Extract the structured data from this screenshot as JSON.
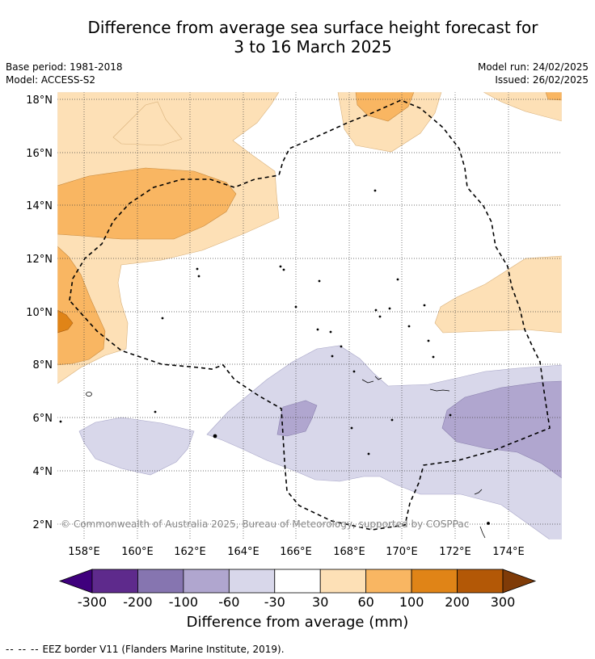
{
  "title_line1": "Difference from average sea surface height forecast for",
  "title_line2": "3 to 16 March 2025",
  "base_period": "Base period: 1981-2018",
  "model": "Model: ACCESS-S2",
  "model_run": "Model run: 24/02/2025",
  "issued": "Issued: 26/02/2025",
  "copyright": "© Commonwealth of Australia 2025, Bureau of Meteorology, supported by COSPPac",
  "lat_labels": [
    "18°N",
    "16°N",
    "14°N",
    "12°N",
    "10°N",
    "8°N",
    "6°N",
    "4°N",
    "2°N"
  ],
  "lon_labels": [
    "158°E",
    "160°E",
    "162°E",
    "164°E",
    "166°E",
    "168°E",
    "170°E",
    "172°E",
    "174°E"
  ],
  "colorbar": {
    "tick_labels": [
      "-300",
      "-200",
      "-100",
      "-60",
      "-30",
      "30",
      "60",
      "100",
      "200",
      "300"
    ],
    "colors": [
      "#3f007d",
      "#5e2a8c",
      "#8675b0",
      "#b0a6cf",
      "#d8d7ea",
      "#ffffff",
      "#fde0b6",
      "#f9b662",
      "#e08417",
      "#b35806",
      "#7f3b08"
    ],
    "title": "Difference from average (mm)"
  },
  "footer_dashes": "-- -- --",
  "footer_text": "EEZ border V11 (Flanders Marine Institute, 2019)."
}
